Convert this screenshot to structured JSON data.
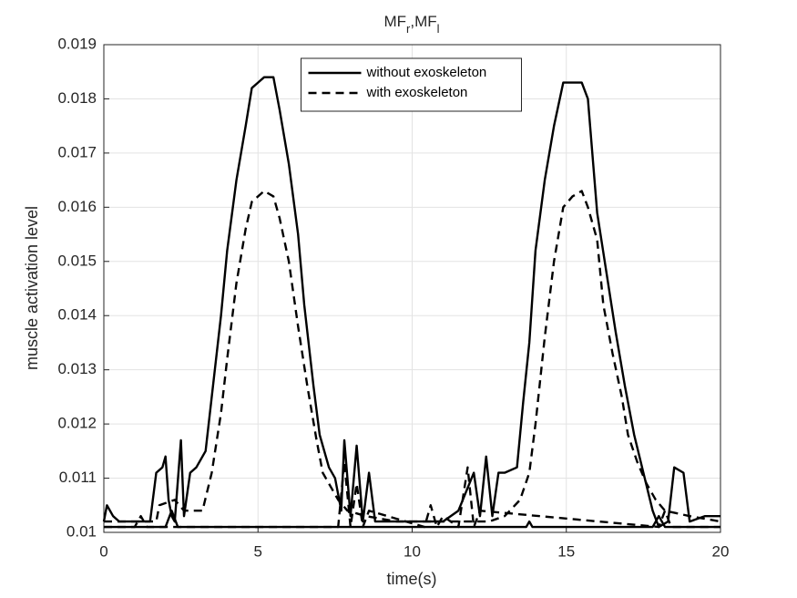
{
  "chart_data": {
    "type": "line",
    "title": [
      "MF",
      "r",
      ",MF",
      "l"
    ],
    "xlabel": "time(s)",
    "ylabel": "muscle activation level",
    "xlim": [
      0,
      20
    ],
    "ylim": [
      0.01,
      0.019
    ],
    "xticks": [
      0,
      5,
      10,
      15,
      20
    ],
    "yticks": [
      0.01,
      0.011,
      0.012,
      0.013,
      0.014,
      0.015,
      0.016,
      0.017,
      0.018,
      0.019
    ],
    "grid": true,
    "legend": "north",
    "series": [
      {
        "name": "without exoskeleton",
        "color": "#000000",
        "dash": "solid",
        "x": [
          0,
          0.1,
          0.3,
          0.5,
          1.0,
          1.5,
          1.7,
          1.9,
          2.0,
          2.1,
          2.2,
          2.3,
          2.5,
          2.6,
          2.8,
          3.0,
          3.3,
          3.5,
          3.8,
          4.0,
          4.3,
          4.6,
          4.8,
          5.0,
          5.2,
          5.5,
          5.7,
          6.0,
          6.3,
          6.5,
          6.8,
          7.0,
          7.3,
          7.5,
          7.7,
          7.8,
          8.0,
          8.2,
          8.4,
          8.6,
          8.8,
          9.0,
          9.5,
          10.0,
          10.5,
          11.0,
          11.5,
          12.0,
          12.2,
          12.4,
          12.6,
          12.8,
          13.0,
          13.4,
          13.6,
          13.8,
          14.0,
          14.3,
          14.6,
          14.9,
          15.5,
          15.7,
          15.8,
          16.0,
          16.3,
          16.6,
          16.9,
          17.2,
          17.5,
          17.8,
          18.0,
          18.3,
          18.5,
          18.8,
          19.0,
          19.5,
          20.0
        ],
        "values": [
          0.0102,
          0.0105,
          0.0103,
          0.0102,
          0.0102,
          0.0102,
          0.0111,
          0.0112,
          0.0114,
          0.0106,
          0.0103,
          0.0102,
          0.0117,
          0.0103,
          0.0111,
          0.0112,
          0.0115,
          0.0125,
          0.014,
          0.0152,
          0.0165,
          0.0175,
          0.0182,
          0.0183,
          0.0184,
          0.0184,
          0.0178,
          0.0168,
          0.0155,
          0.0142,
          0.0127,
          0.0118,
          0.0112,
          0.011,
          0.0104,
          0.0117,
          0.0103,
          0.0116,
          0.0102,
          0.0111,
          0.0102,
          0.0102,
          0.0102,
          0.0102,
          0.0102,
          0.0102,
          0.0104,
          0.0111,
          0.0103,
          0.0114,
          0.0103,
          0.0111,
          0.0111,
          0.0112,
          0.0124,
          0.0135,
          0.0152,
          0.0165,
          0.0175,
          0.0183,
          0.0183,
          0.018,
          0.0173,
          0.0159,
          0.0148,
          0.0137,
          0.0127,
          0.0118,
          0.0111,
          0.0104,
          0.0101,
          0.0102,
          0.0112,
          0.0111,
          0.0102,
          0.0103,
          0.0103
        ]
      },
      {
        "color": "#000000",
        "dash": "solid",
        "x": [
          0,
          2.0,
          2.2,
          2.4,
          5.0,
          9.0,
          10.0,
          13.7,
          13.8,
          13.9,
          17.8,
          18.0,
          18.2,
          20.0
        ],
        "values": [
          0.0101,
          0.0101,
          0.0104,
          0.0101,
          0.0101,
          0.0101,
          0.0101,
          0.0101,
          0.0102,
          0.0101,
          0.0101,
          0.0103,
          0.0101,
          0.0101
        ]
      },
      {
        "name": "with exoskeleton",
        "color": "#000000",
        "dash": "dashed",
        "x": [
          0,
          1.7,
          1.8,
          2.3,
          2.6,
          3.2,
          3.5,
          3.8,
          4.0,
          4.3,
          4.6,
          4.8,
          5.0,
          5.2,
          5.5,
          5.7,
          6.0,
          6.3,
          6.6,
          6.9,
          7.1,
          7.3,
          7.6,
          7.9,
          8.5,
          9.5,
          10.5,
          12.5,
          13.0,
          13.5,
          13.8,
          14.0,
          14.3,
          14.6,
          14.9,
          15.2,
          15.5,
          15.7,
          16.0,
          16.2,
          16.5,
          16.8,
          17.0,
          17.3,
          17.6,
          17.9,
          18.2,
          19.0,
          20.0
        ],
        "values": [
          0.0102,
          0.0102,
          0.0105,
          0.0106,
          0.0104,
          0.0104,
          0.0111,
          0.0122,
          0.0132,
          0.0146,
          0.0156,
          0.0161,
          0.0162,
          0.0163,
          0.0162,
          0.0158,
          0.015,
          0.0138,
          0.0127,
          0.0117,
          0.0111,
          0.0109,
          0.0106,
          0.0104,
          0.0103,
          0.0102,
          0.0102,
          0.0102,
          0.0103,
          0.0106,
          0.0111,
          0.012,
          0.0136,
          0.015,
          0.016,
          0.0162,
          0.0163,
          0.016,
          0.0154,
          0.0142,
          0.0133,
          0.0125,
          0.0118,
          0.0113,
          0.0109,
          0.0106,
          0.0104,
          0.0103,
          0.0102
        ]
      },
      {
        "color": "#000000",
        "dash": "dashed",
        "x": [
          0,
          1.0,
          1.2,
          1.4,
          7.6,
          7.8,
          8.0,
          8.2,
          8.4,
          8.6,
          10.4,
          10.6,
          10.8,
          11.0,
          11.5,
          11.8,
          12.0,
          12.2,
          18.0,
          18.2,
          18.4,
          20.0
        ],
        "values": [
          0.0101,
          0.0101,
          0.0103,
          0.0101,
          0.0101,
          0.0113,
          0.0101,
          0.0109,
          0.0101,
          0.0104,
          0.0101,
          0.0105,
          0.0101,
          0.0103,
          0.0101,
          0.0112,
          0.0101,
          0.0104,
          0.0101,
          0.0104,
          0.0101,
          0.0101
        ]
      }
    ]
  }
}
